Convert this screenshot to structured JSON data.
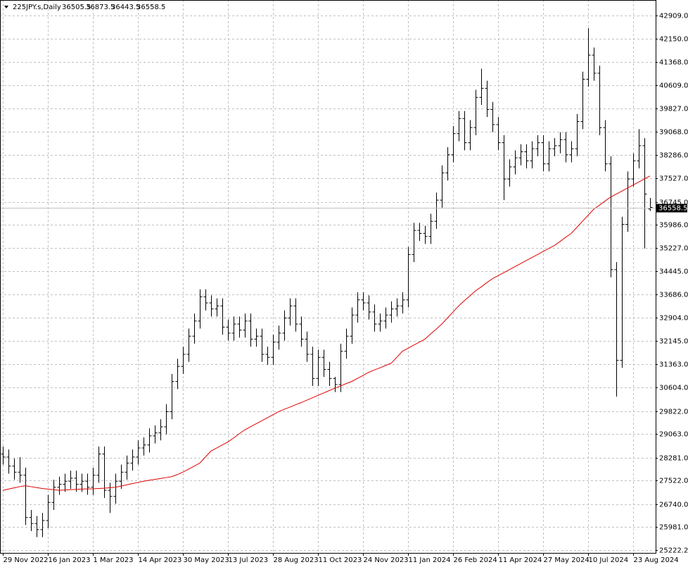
{
  "chart_data": {
    "type": "ohlc",
    "symbol": "225JPY.s,Daily",
    "color": "#000000",
    "grid": true,
    "ylim": [
      25128,
      43422
    ],
    "yticks": [
      {
        "value": 42909,
        "label": "42909.0"
      },
      {
        "value": 42150,
        "label": "42150.0"
      },
      {
        "value": 41368,
        "label": "41368.0"
      },
      {
        "value": 40609,
        "label": "40609.0"
      },
      {
        "value": 39827,
        "label": "39827.0"
      },
      {
        "value": 39068,
        "label": "39068.0"
      },
      {
        "value": 38286,
        "label": "38286.0"
      },
      {
        "value": 37527,
        "label": "37527.0"
      },
      {
        "value": 36745,
        "label": "36745.0"
      },
      {
        "value": 35986,
        "label": "35986.0"
      },
      {
        "value": 35227,
        "label": "35227.0"
      },
      {
        "value": 34445,
        "label": "34445.0"
      },
      {
        "value": 33686,
        "label": "33686.0"
      },
      {
        "value": 32904,
        "label": "32904.0"
      },
      {
        "value": 32145,
        "label": "32145.0"
      },
      {
        "value": 31363,
        "label": "31363.0"
      },
      {
        "value": 30604,
        "label": "30604.0"
      },
      {
        "value": 29822,
        "label": "29822.0"
      },
      {
        "value": 29063,
        "label": "29063.0"
      },
      {
        "value": 28281,
        "label": "28281.0"
      },
      {
        "value": 27522,
        "label": "27522.0"
      },
      {
        "value": 26740,
        "label": "26740.0"
      },
      {
        "value": 25981,
        "label": "25981.0"
      },
      25222.2
    ],
    "categories": [
      "29 Nov 2022",
      null,
      null,
      null,
      null,
      null,
      null,
      null,
      "16 Jan 2023",
      null,
      null,
      null,
      null,
      null,
      null,
      null,
      "1 Mar 2023",
      null,
      null,
      null,
      null,
      null,
      null,
      null,
      "14 Apr 2023",
      null,
      null,
      null,
      null,
      null,
      null,
      null,
      "30 May 2023",
      null,
      null,
      null,
      null,
      null,
      null,
      null,
      "13 Jul 2023",
      null,
      null,
      null,
      null,
      null,
      null,
      null,
      "28 Aug 2023",
      null,
      null,
      null,
      null,
      null,
      null,
      null,
      "11 Oct 2023",
      null,
      null,
      null,
      null,
      null,
      null,
      null,
      "24 Nov 2023",
      null,
      null,
      null,
      null,
      null,
      null,
      null,
      "11 Jan 2024",
      null,
      null,
      null,
      null,
      null,
      null,
      null,
      "26 Feb 2024",
      null,
      null,
      null,
      null,
      null,
      null,
      null,
      "11 Apr 2024",
      null,
      null,
      null,
      null,
      null,
      null,
      null,
      "27 May 2024",
      null,
      null,
      null,
      null,
      null,
      null,
      null,
      "10 Jul 2024",
      null,
      null,
      null,
      null,
      null,
      null,
      null,
      "23 Aug 2024",
      null,
      null,
      null
    ],
    "open": [
      28400,
      28300,
      28000,
      27800,
      27700,
      26300,
      26100,
      25900,
      26200,
      26800,
      27300,
      27400,
      27500,
      27600,
      27400,
      27500,
      27300,
      27700,
      28400,
      27200,
      27000,
      27500,
      27800,
      28100,
      28300,
      28600,
      28700,
      29000,
      29100,
      29300,
      29800,
      30800,
      31300,
      31700,
      32300,
      32800,
      33600,
      33400,
      33200,
      33300,
      32600,
      32400,
      32700,
      32500,
      32800,
      32200,
      32300,
      31700,
      31600,
      32100,
      32400,
      32900,
      33300,
      32700,
      32200,
      31700,
      30900,
      31600,
      31200,
      30900,
      30700,
      31800,
      32300,
      33000,
      33500,
      33400,
      33100,
      32700,
      32800,
      33000,
      33200,
      33300,
      33500,
      35000,
      35800,
      35700,
      35600,
      36100,
      36800,
      37700,
      38300,
      39000,
      39500,
      38700,
      39200,
      40200,
      40500,
      39800,
      39300,
      38700,
      37500,
      37900,
      38200,
      38400,
      38100,
      38500,
      38700,
      38000,
      38500,
      38600,
      38800,
      38300,
      38500,
      39400,
      40800,
      41600,
      41000,
      39200,
      38000,
      34500,
      31500,
      36000,
      37500,
      38100,
      38600,
      36505.5
    ],
    "high": [
      28650,
      28550,
      28250,
      28300,
      27950,
      26550,
      26350,
      26450,
      27050,
      27550,
      27650,
      27750,
      27850,
      27850,
      27750,
      27750,
      27950,
      28650,
      28650,
      27450,
      27750,
      28050,
      28350,
      28550,
      28850,
      28950,
      29250,
      29350,
      29550,
      30050,
      31050,
      31550,
      31950,
      32550,
      33050,
      33850,
      33850,
      33650,
      33550,
      33550,
      32850,
      32950,
      32950,
      33050,
      33050,
      32550,
      32550,
      31950,
      32350,
      32650,
      33150,
      33550,
      33550,
      32950,
      32450,
      31950,
      31850,
      31850,
      31450,
      30950,
      32050,
      32550,
      33250,
      33750,
      33750,
      33650,
      33350,
      33050,
      33250,
      33450,
      33550,
      33750,
      35250,
      36050,
      36050,
      35950,
      36350,
      37050,
      37950,
      38550,
      39250,
      39750,
      39750,
      39450,
      40450,
      41150,
      40750,
      40050,
      39550,
      38950,
      38150,
      38450,
      38650,
      38650,
      38750,
      38950,
      38950,
      38750,
      38850,
      39050,
      39050,
      38750,
      39650,
      41050,
      42490,
      41850,
      41250,
      39450,
      38250,
      34750,
      36250,
      37750,
      38350,
      39150,
      38850,
      36873.5
    ],
    "low": [
      28050,
      27750,
      27550,
      27450,
      26050,
      25850,
      25650,
      25650,
      25950,
      26550,
      27050,
      27150,
      27250,
      27150,
      27150,
      27050,
      27050,
      27450,
      26950,
      26450,
      26750,
      27250,
      27550,
      27850,
      28050,
      28350,
      28450,
      28750,
      28850,
      29050,
      29550,
      30550,
      31050,
      31450,
      32050,
      32550,
      33150,
      32950,
      32950,
      32350,
      32150,
      32150,
      32250,
      32250,
      31950,
      31950,
      31450,
      31350,
      31350,
      31850,
      32150,
      32650,
      32450,
      31950,
      31450,
      30650,
      30650,
      30950,
      30650,
      30450,
      30450,
      31550,
      32050,
      32750,
      33150,
      32850,
      32450,
      32450,
      32550,
      32750,
      32950,
      33050,
      33250,
      34750,
      35450,
      35350,
      35350,
      35850,
      36550,
      37450,
      38050,
      38750,
      38450,
      38450,
      38950,
      39950,
      39550,
      39050,
      38450,
      36800,
      37250,
      37650,
      37950,
      37850,
      37850,
      38250,
      37750,
      37750,
      38250,
      38350,
      38050,
      38050,
      38250,
      39150,
      40550,
      40750,
      38950,
      37750,
      34250,
      30300,
      31250,
      35750,
      37250,
      37850,
      35200,
      36443.5
    ],
    "close": [
      28300,
      28000,
      27800,
      27700,
      26300,
      26100,
      25900,
      26200,
      26800,
      27300,
      27400,
      27500,
      27600,
      27400,
      27500,
      27300,
      27700,
      28400,
      27200,
      27000,
      27500,
      27800,
      28100,
      28300,
      28600,
      28700,
      29000,
      29100,
      29300,
      29800,
      30800,
      31300,
      31700,
      32300,
      32800,
      33600,
      33400,
      33200,
      33300,
      32600,
      32400,
      32700,
      32500,
      32800,
      32200,
      32300,
      31700,
      31600,
      32100,
      32400,
      32900,
      33300,
      32700,
      32200,
      31700,
      30900,
      31600,
      31200,
      30900,
      30700,
      31800,
      32300,
      33000,
      33500,
      33400,
      33100,
      32700,
      32800,
      33000,
      33200,
      33300,
      33500,
      35000,
      35800,
      35700,
      35600,
      36100,
      36800,
      37700,
      38300,
      39000,
      39500,
      38700,
      39200,
      40200,
      40500,
      39800,
      39300,
      38700,
      37500,
      37900,
      38200,
      38400,
      38100,
      38500,
      38700,
      38000,
      38500,
      38600,
      38800,
      38300,
      38500,
      39400,
      40800,
      41600,
      41000,
      39200,
      38000,
      34500,
      31500,
      36000,
      37500,
      38100,
      38600,
      37000,
      36558.5
    ],
    "ma": {
      "color": "#e00000",
      "values": [
        27200,
        27240,
        27280,
        27320,
        27350,
        27320,
        27290,
        27260,
        27240,
        27220,
        27200,
        27210,
        27220,
        27230,
        27240,
        27245,
        27250,
        27260,
        27270,
        27285,
        27300,
        27340,
        27380,
        27420,
        27460,
        27500,
        27530,
        27560,
        27590,
        27620,
        27650,
        27720,
        27800,
        27900,
        28000,
        28100,
        28300,
        28500,
        28600,
        28700,
        28800,
        28930,
        29070,
        29200,
        29300,
        29400,
        29500,
        29600,
        29700,
        29800,
        29880,
        29950,
        30030,
        30100,
        30180,
        30260,
        30340,
        30420,
        30500,
        30580,
        30650,
        30730,
        30800,
        30900,
        31000,
        31100,
        31180,
        31250,
        31330,
        31400,
        31600,
        31800,
        31900,
        32000,
        32100,
        32200,
        32370,
        32530,
        32700,
        32900,
        33100,
        33300,
        33470,
        33630,
        33800,
        33930,
        34070,
        34200,
        34300,
        34400,
        34500,
        34600,
        34700,
        34800,
        34900,
        35000,
        35100,
        35200,
        35300,
        35430,
        35570,
        35700,
        35900,
        36100,
        36300,
        36500,
        36630,
        36770,
        36900,
        37000,
        37100,
        37200,
        37300,
        37400,
        37500,
        37600
      ]
    }
  }
}
